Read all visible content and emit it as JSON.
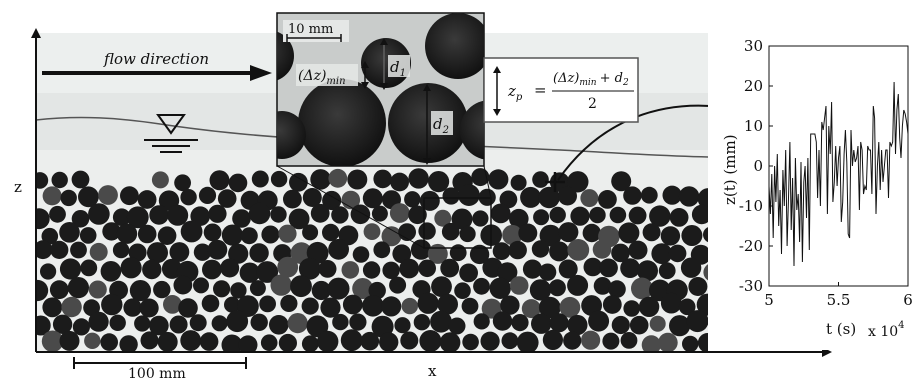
{
  "figure": {
    "flow_label": "flow direction",
    "axis_z_label": "z",
    "axis_x_label": "x",
    "scale_bar_main": "100 mm",
    "inset_scale_bar": "10 mm",
    "inset_delta": "(Δz)",
    "inset_delta_sub": "min",
    "inset_d1": "d",
    "inset_d1_sub": "1",
    "inset_d2": "d",
    "inset_d2_sub": "2",
    "eq_lhs": "z",
    "eq_lhs_sub": "p",
    "eq_equals": "=",
    "eq_num_a": "(Δz)",
    "eq_num_a_sub": "min",
    "eq_num_plus": "+ d",
    "eq_num_plus_sub": "2",
    "eq_den": "2",
    "colors": {
      "water": "#dfe3e2",
      "bed": "#e9ebea",
      "bead": "#1b1b1b",
      "frame": "#333333"
    }
  },
  "chart_data": {
    "type": "line",
    "title": "",
    "xlabel": "t (s)",
    "ylabel": "z(t) (mm)",
    "x_multiplier_label": "x 10",
    "x_multiplier_exp": "4",
    "xlim": [
      5,
      6
    ],
    "ylim": [
      -30,
      30
    ],
    "xticks": [
      5,
      5.5,
      6
    ],
    "xtick_labels": [
      "5",
      "5.5",
      "6"
    ],
    "yticks": [
      -30,
      -20,
      -10,
      0,
      10,
      20,
      30
    ],
    "ytick_labels": [
      "-30",
      "-20",
      "-10",
      "0",
      "10",
      "20",
      "30"
    ],
    "grid": false,
    "series": [
      {
        "x": [
          5.0,
          5.01,
          5.02,
          5.03,
          5.04,
          5.05,
          5.06,
          5.07,
          5.08,
          5.09,
          5.1,
          5.11,
          5.12,
          5.13,
          5.14,
          5.15,
          5.16,
          5.17,
          5.18,
          5.19,
          5.2,
          5.21,
          5.22,
          5.23,
          5.24,
          5.25,
          5.26,
          5.27,
          5.28,
          5.29,
          5.3,
          5.31,
          5.32,
          5.33,
          5.34,
          5.35,
          5.36,
          5.37,
          5.38,
          5.39,
          5.4,
          5.41,
          5.42,
          5.43,
          5.44,
          5.45,
          5.46,
          5.47,
          5.48,
          5.49,
          5.5,
          5.51,
          5.52,
          5.53,
          5.54,
          5.55,
          5.56,
          5.57,
          5.58,
          5.59,
          5.6,
          5.61,
          5.62,
          5.63,
          5.64,
          5.65,
          5.66,
          5.67,
          5.68,
          5.69,
          5.7,
          5.71,
          5.72,
          5.73,
          5.74,
          5.75,
          5.76,
          5.77,
          5.78,
          5.79,
          5.8,
          5.81,
          5.82,
          5.83,
          5.84,
          5.85,
          5.86,
          5.87,
          5.88,
          5.89,
          5.9,
          5.91,
          5.92,
          5.93,
          5.94,
          5.95,
          5.96,
          5.97,
          5.98,
          5.99,
          6.0
        ],
        "y": [
          -5,
          -12,
          -2,
          -18,
          0,
          -9,
          3,
          -15,
          -6,
          -22,
          -1,
          -10,
          4,
          -20,
          -8,
          6,
          -16,
          -3,
          -25,
          2,
          -11,
          -7,
          -19,
          1,
          -24,
          -4,
          0,
          -13,
          2,
          -21,
          8,
          8,
          8,
          8,
          6,
          -8,
          4,
          -10,
          11,
          9,
          12,
          15,
          -12,
          10,
          3,
          16,
          -9,
          -4,
          5,
          -5,
          2,
          5,
          -14,
          -9,
          3,
          9,
          1,
          -17,
          -18,
          9,
          0,
          4,
          1,
          2,
          5,
          -11,
          6,
          4,
          -7,
          -5,
          -6,
          5,
          4,
          4,
          -7,
          15,
          12,
          -12,
          0,
          6,
          -6,
          4,
          -4,
          0,
          4,
          4,
          -8,
          6,
          5,
          6,
          21,
          3,
          14,
          18,
          7,
          2,
          10,
          14,
          13,
          11,
          8
        ]
      }
    ]
  }
}
